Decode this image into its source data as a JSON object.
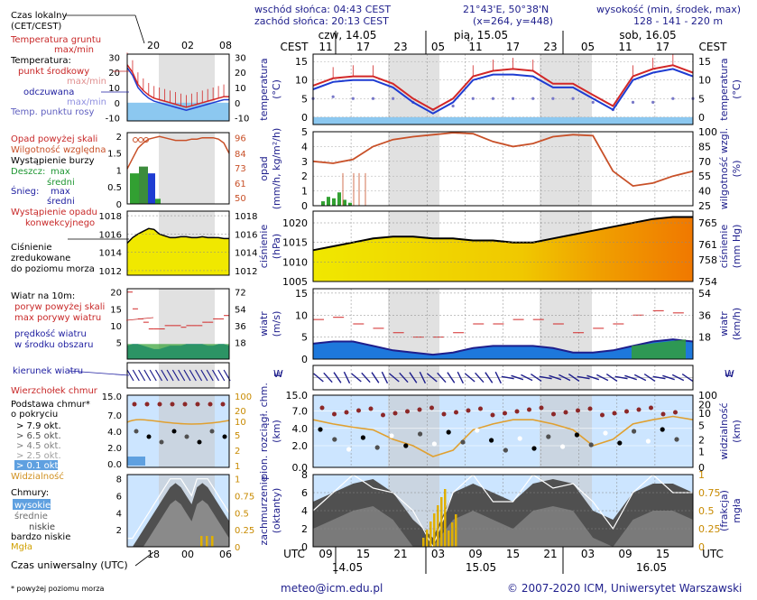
{
  "header": {
    "sunrise": "wschód słońca: 04:43 CEST",
    "sunset": "zachód słońca: 20:13 CEST",
    "coords": "21°43'E, 50°38'N",
    "grid": "(x=264, y=448)",
    "altitude_label": "wysokość (min, środek, max)",
    "altitude_values": "128 - 141 - 220 m"
  },
  "top_axis": {
    "tz_left": "CEST",
    "tz_right": "CEST",
    "days": [
      "czw, 14.05",
      "pią, 15.05",
      "sob, 16.05"
    ],
    "hours": [
      "11",
      "17",
      "23",
      "05",
      "11",
      "17",
      "23",
      "05",
      "11",
      "17"
    ]
  },
  "bottom_axis": {
    "tz_left": "UTC",
    "tz_right": "UTC",
    "hours": [
      "09",
      "15",
      "21",
      "03",
      "09",
      "15",
      "21",
      "03",
      "09",
      "15"
    ],
    "dates": [
      "14.05",
      "15.05",
      "16.05"
    ]
  },
  "legend": {
    "time_local": "Czas lokalny",
    "time_local_sub": "(CET/CEST)",
    "small_hours_top": [
      "20",
      "02",
      "08"
    ],
    "small_hours_bottom": [
      "18",
      "00",
      "06"
    ],
    "utc_label": "Czas uniwersalny (UTC)",
    "footnote": "* powyżej poziomu morza",
    "temp_ground": "Temperatura gruntu",
    "temp_ground_sub": "max/min",
    "temp_title": "Temperatura:",
    "temp_mid": "punkt środkowy",
    "temp_mid_sub": "max/min",
    "temp_feel": "odczuwana",
    "temp_feel_sub": "max/min",
    "dew": "Temp. punktu rosy",
    "prec_above": "Opad powyżej skali",
    "humidity": "Wilgotność względna",
    "storm": "Wystąpienie burzy",
    "rain": "Deszcz:",
    "rain_max": "max",
    "rain_mid": "średni",
    "snow": "Śnieg:",
    "snow_max": "max",
    "snow_mid": "średni",
    "conv": "Wystąpienie opadu",
    "conv_sub": "konwekcyjnego",
    "press1": "Ciśnienie",
    "press2": "zredukowane",
    "press3": "do poziomu morza",
    "wind_title": "Wiatr na 10m:",
    "gust_above": "poryw powyżej skali",
    "gust_max": "max porywy wiatru",
    "wind_speed": "prędkość wiatru",
    "wind_speed_sub": "w środku obszaru",
    "wind_dir": "kierunek wiatru",
    "cloud_top": "Wierzchołek chmur",
    "cloud_base": "Podstawa chmur*",
    "cloud_base_sub": "o pokryciu",
    "okt": [
      "> 7.9 okt.",
      "> 6.5 okt.",
      "> 4.5 okt.",
      "> 2.5 okt.",
      "> 0.1 okt."
    ],
    "visibility": "Widzialność",
    "clouds": "Chmury:",
    "cl_high": "wysokie",
    "cl_mid": "średnie",
    "cl_low": "niskie",
    "cl_vlow": "bardzo niskie",
    "fog": "Mgła"
  },
  "axis_titles": {
    "temp_left": [
      "temperatura",
      "(°C)"
    ],
    "temp_right": [
      "temperatura",
      "(°C)"
    ],
    "prec_left": [
      "opad",
      "(mm/h, kg/m²/h)"
    ],
    "prec_right": [
      "wilgotność wzgl.",
      "(%)"
    ],
    "press_left": [
      "ciśnienie",
      "(hPa)"
    ],
    "press_right": [
      "ciśnienie",
      "(mm Hg)"
    ],
    "wind_left": [
      "wiatr",
      "(m/s)"
    ],
    "wind_right": [
      "wiatr",
      "(km/h)"
    ],
    "dir_left": [
      "W",
      "E"
    ],
    "dir_right": [
      "W",
      "E"
    ],
    "vis_left": [
      "pion. rozciągł. chm.",
      "(km)"
    ],
    "vis_right": [
      "widzialność",
      "(km)"
    ],
    "cloud_left": [
      "zachmurzenie",
      "(oktanty)"
    ],
    "cloud_right": [
      "(frakcja)",
      "mgła"
    ]
  },
  "footer": {
    "email": "meteo@icm.edu.pl",
    "copyright": "© 2007-2020 ICM, Uniwersytet Warszawski"
  },
  "colors": {
    "panel_bg": "#cce5ff",
    "night": "#d9d9d9",
    "temp_mid": "#d22828",
    "temp_feel": "#1e3cd2",
    "dew": "#7878c8",
    "humidity": "#c85028",
    "pressure": "#f0c800",
    "pressure_late": "#f07800",
    "wind_fill": "#1e78dc",
    "wind_green": "#32a032",
    "visibility": "#e0a030",
    "cloud_dark": "#505050",
    "fog": "#e0b000"
  },
  "chart_data": [
    {
      "type": "line",
      "name_key": "temperature",
      "x": [
        "11",
        "14",
        "17",
        "20",
        "23",
        "02",
        "05",
        "08",
        "11",
        "14",
        "17",
        "20",
        "23",
        "02",
        "05",
        "08",
        "11",
        "14",
        "17",
        "20"
      ],
      "series": [
        {
          "name": "punkt środkowy",
          "values": [
            8.5,
            10.5,
            11,
            11,
            9,
            5,
            2,
            5,
            11,
            12.5,
            13,
            12.5,
            9,
            9,
            6,
            3,
            11,
            13,
            14,
            12
          ]
        },
        {
          "name": "odczuwana",
          "values": [
            7.5,
            9.5,
            10,
            10,
            8,
            4,
            1,
            4,
            10,
            11.5,
            11.5,
            11,
            8,
            8,
            5,
            2,
            10,
            12,
            13,
            11
          ]
        },
        {
          "name": "Temp. punktu rosy",
          "values": [
            5,
            5.5,
            5,
            5,
            5,
            4,
            2,
            3,
            5,
            5,
            5,
            5,
            5,
            5,
            4,
            2,
            4,
            4,
            5,
            5
          ]
        }
      ],
      "ylabel": "temperatura (°C)",
      "ylim": [
        -2,
        17
      ],
      "yticks": [
        0,
        5,
        10,
        15
      ],
      "right_yticks": [
        0,
        5,
        10,
        15
      ],
      "legend_yticks": [
        -10,
        0,
        10,
        20,
        30
      ],
      "legend_right_yticks": [
        -10,
        0,
        10,
        20,
        30
      ]
    },
    {
      "type": "bar",
      "name_key": "precipitation",
      "ylabel": "opad (mm/h, kg/m²/h)",
      "ylim": [
        0,
        5
      ],
      "yticks": [
        0,
        1,
        2,
        3,
        4,
        5
      ],
      "right_label": "wilgotność wzgl. (%)",
      "right_yticks": [
        25,
        40,
        55,
        70,
        85,
        100
      ],
      "legend_yticks": [
        0,
        0.5,
        1,
        1.5,
        2
      ],
      "legend_right_yticks": [
        50,
        61,
        73,
        84,
        96
      ],
      "humidity": {
        "x": [
          "11",
          "14",
          "17",
          "20",
          "23",
          "02",
          "05",
          "08",
          "11",
          "14",
          "17",
          "20",
          "23",
          "02",
          "05",
          "08",
          "11",
          "14",
          "17",
          "20"
        ],
        "values": [
          70,
          68,
          72,
          85,
          92,
          95,
          97,
          99,
          98,
          90,
          85,
          88,
          95,
          97,
          96,
          60,
          45,
          48,
          55,
          60
        ]
      },
      "rain_bars": {
        "x": [
          "09",
          "10",
          "11",
          "12",
          "13",
          "14"
        ],
        "values": [
          0.3,
          0.6,
          0.5,
          0.9,
          0.4,
          0.2
        ]
      }
    },
    {
      "type": "area",
      "name_key": "pressure",
      "ylabel": "ciśnienie (hPa)",
      "ylim": [
        1005,
        1023
      ],
      "yticks": [
        1005,
        1010,
        1015,
        1020
      ],
      "right_label": "ciśnienie (mm Hg)",
      "right_yticks": [
        754,
        758,
        761,
        765
      ],
      "legend_yticks": [
        1012,
        1014,
        1016,
        1018
      ],
      "legend_right_yticks": [
        1012,
        1014,
        1016,
        1018
      ],
      "x": [
        "11",
        "14",
        "17",
        "20",
        "23",
        "02",
        "05",
        "08",
        "11",
        "14",
        "17",
        "20",
        "23",
        "02",
        "05",
        "08",
        "11",
        "14",
        "17",
        "20"
      ],
      "values": [
        1013,
        1014,
        1015,
        1016,
        1016.5,
        1016.5,
        1016,
        1016,
        1015.5,
        1015.5,
        1015,
        1015,
        1016,
        1017,
        1018,
        1019,
        1020,
        1021,
        1021.5,
        1021.5
      ]
    },
    {
      "type": "area",
      "name_key": "wind",
      "ylabel": "wiatr (m/s)",
      "ylim": [
        0,
        16
      ],
      "yticks": [
        0,
        5,
        10,
        15
      ],
      "right_label": "wiatr (km/h)",
      "right_yticks": [
        18,
        36,
        54
      ],
      "legend_yticks": [
        5,
        10,
        15,
        20
      ],
      "legend_right_yticks": [
        18,
        36,
        54,
        72
      ],
      "x": [
        "11",
        "14",
        "17",
        "20",
        "23",
        "02",
        "05",
        "08",
        "11",
        "14",
        "17",
        "20",
        "23",
        "02",
        "05",
        "08",
        "11",
        "14",
        "17",
        "20"
      ],
      "speed": [
        3.5,
        4,
        4,
        3,
        2,
        1.5,
        1,
        1.5,
        2.5,
        3,
        3,
        3,
        2.5,
        1.5,
        1.5,
        2,
        3,
        4,
        4.5,
        4
      ],
      "gust": [
        9,
        9.5,
        8,
        7,
        6,
        5,
        5,
        6,
        8,
        8,
        9,
        9,
        8,
        6,
        7,
        8,
        10,
        11,
        10.5,
        10
      ]
    },
    {
      "type": "scatter",
      "name_key": "cloud_base_visibility",
      "ylabel": "pion. rozciągł. chm. (km)",
      "yticks": [
        0,
        2,
        4,
        7,
        15
      ],
      "right_label": "widzialność (km)",
      "right_yticks": [
        0,
        1,
        2,
        5,
        10,
        20,
        100
      ],
      "legend_yticks": [
        0.0,
        2.0,
        4.0,
        7.0,
        15.0
      ],
      "legend_right_yticks": [
        1,
        2,
        5,
        10,
        20,
        100
      ],
      "visibility_km": [
        20,
        15,
        12,
        10,
        5,
        3,
        1,
        2,
        10,
        15,
        20,
        20,
        15,
        10,
        3,
        5,
        15,
        20,
        25,
        20
      ]
    },
    {
      "type": "area",
      "name_key": "cloud_cover",
      "ylabel": "zachmurzenie (oktanty)",
      "ylim": [
        0,
        8
      ],
      "yticks": [
        0,
        2,
        4,
        6,
        8
      ],
      "right_label": "(frakcja) mgła",
      "right_yticks": [
        0,
        0.25,
        0.5,
        0.75,
        1
      ],
      "legend_yticks": [
        2,
        4,
        6,
        8
      ],
      "legend_right_yticks": [
        0,
        0.25,
        0.5,
        0.75,
        1
      ],
      "x": [
        "11",
        "14",
        "17",
        "20",
        "23",
        "02",
        "05",
        "08",
        "11",
        "14",
        "17",
        "20",
        "23",
        "02",
        "05",
        "08",
        "11",
        "14",
        "17",
        "20"
      ],
      "octants": [
        5,
        6,
        7,
        7.5,
        6,
        3,
        1,
        6,
        7,
        6,
        5,
        7,
        7.5,
        7,
        4,
        3,
        6,
        7,
        7,
        6
      ]
    }
  ]
}
